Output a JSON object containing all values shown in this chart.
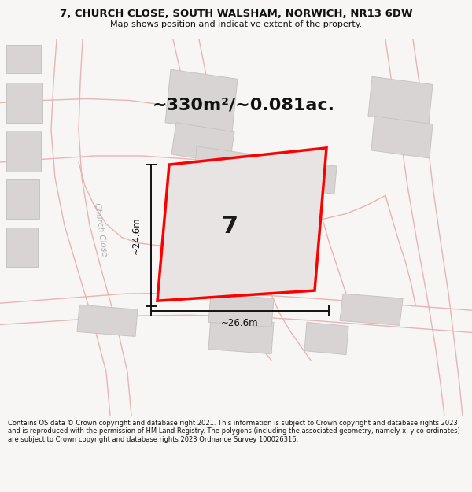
{
  "title": "7, CHURCH CLOSE, SOUTH WALSHAM, NORWICH, NR13 6DW",
  "subtitle": "Map shows position and indicative extent of the property.",
  "area_text": "~330m²/~0.081ac.",
  "plot_number": "7",
  "dim_width": "~26.6m",
  "dim_height": "~24.6m",
  "street_label": "Church Close",
  "footer": "Contains OS data © Crown copyright and database right 2021. This information is subject to Crown copyright and database rights 2023 and is reproduced with the permission of HM Land Registry. The polygons (including the associated geometry, namely x, y co-ordinates) are subject to Crown copyright and database rights 2023 Ordnance Survey 100026316.",
  "bg_color": "#f7f6f5",
  "map_bg": "#eeeceb",
  "road_color": "#e8b4b4",
  "building_fc": "#d8d4d3",
  "building_ec": "#c8c4c3",
  "plot_fill": "#e8e4e3",
  "plot_edge": "#ff0000",
  "plot_lw": 2.5,
  "dim_color": "#111111",
  "label_color": "#aaaaaa",
  "title_fs": 9.5,
  "subtitle_fs": 8.0,
  "area_fs": 16,
  "plot_num_fs": 22,
  "dim_fs": 8.5,
  "street_fs": 7.5,
  "footer_fs": 6.0,
  "title_color": "#111111",
  "footer_color": "#111111"
}
